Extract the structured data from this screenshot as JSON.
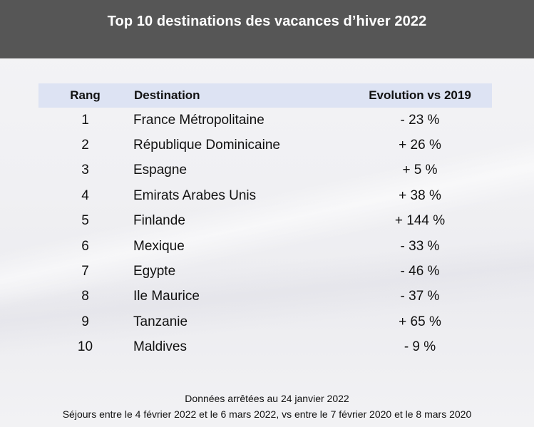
{
  "title": "Top 10 destinations des vacances d’hiver 2022",
  "table": {
    "headers": {
      "rank": "Rang",
      "destination": "Destination",
      "evolution": "Evolution vs 2019"
    },
    "rows": [
      {
        "rank": "1",
        "destination": "France Métropolitaine",
        "evolution": "- 23 %"
      },
      {
        "rank": "2",
        "destination": "République Dominicaine",
        "evolution": "+ 26 %"
      },
      {
        "rank": "3",
        "destination": "Espagne",
        "evolution": "+ 5 %"
      },
      {
        "rank": "4",
        "destination": "Emirats Arabes Unis",
        "evolution": "+ 38 %"
      },
      {
        "rank": "5",
        "destination": "Finlande",
        "evolution": "+ 144 %"
      },
      {
        "rank": "6",
        "destination": "Mexique",
        "evolution": "- 33 %"
      },
      {
        "rank": "7",
        "destination": "Egypte",
        "evolution": "- 46 %"
      },
      {
        "rank": "8",
        "destination": "Ile Maurice",
        "evolution": "- 37 %"
      },
      {
        "rank": "9",
        "destination": "Tanzanie",
        "evolution": "+ 65 %"
      },
      {
        "rank": "10",
        "destination": "Maldives",
        "evolution": "- 9 %"
      }
    ]
  },
  "footer": {
    "line1": "Données arrêtées au 24 janvier 2022",
    "line2": "Séjours entre le 4 février 2022 et le 6 mars 2022, vs entre le 7 février 2020 et le 8 mars 2020"
  },
  "colors": {
    "title_bar": "#565656",
    "header_row": "#dde3f3",
    "background": "#f0f0f3"
  }
}
